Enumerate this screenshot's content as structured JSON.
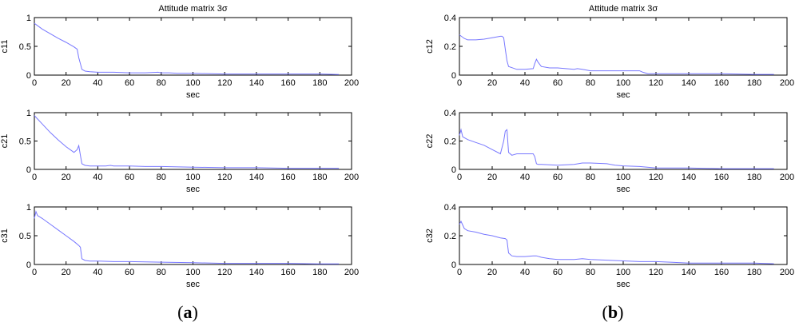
{
  "figure": {
    "panel_labels": [
      {
        "open": "(",
        "letter": "a",
        "close": ")"
      },
      {
        "open": "(",
        "letter": "b",
        "close": ")"
      }
    ]
  },
  "chart_data": [
    {
      "type": "line",
      "title": "Attitude matrix 3σ",
      "xlabel": "sec",
      "ylabel": "c11",
      "xlim": [
        0,
        200
      ],
      "ylim": [
        0,
        1
      ],
      "xticks": [
        0,
        20,
        40,
        60,
        80,
        100,
        120,
        140,
        160,
        180,
        200
      ],
      "yticks": [
        0,
        0.5,
        1
      ],
      "ytick_labels": [
        "0",
        "0.5",
        "1"
      ],
      "grid": false,
      "line_color": "#7777ff",
      "series": [
        {
          "x": [
            0,
            5,
            10,
            15,
            20,
            25,
            27,
            28,
            29,
            30,
            32,
            35,
            40,
            50,
            60,
            70,
            78,
            80,
            85,
            90,
            100,
            120,
            140,
            160,
            180,
            192
          ],
          "y": [
            0.9,
            0.8,
            0.72,
            0.64,
            0.57,
            0.49,
            0.45,
            0.3,
            0.2,
            0.1,
            0.07,
            0.06,
            0.05,
            0.05,
            0.04,
            0.04,
            0.05,
            0.04,
            0.04,
            0.03,
            0.03,
            0.02,
            0.02,
            0.02,
            0.02,
            0.01
          ]
        }
      ]
    },
    {
      "type": "line",
      "title": "Attitude matrix 3σ",
      "xlabel": "sec",
      "ylabel": "c12",
      "xlim": [
        0,
        200
      ],
      "ylim": [
        0,
        0.4
      ],
      "xticks": [
        0,
        20,
        40,
        60,
        80,
        100,
        120,
        140,
        160,
        180,
        200
      ],
      "yticks": [
        0,
        0.2,
        0.4
      ],
      "ytick_labels": [
        "0",
        "0.2",
        "0.4"
      ],
      "grid": false,
      "line_color": "#7777ff",
      "series": [
        {
          "x": [
            0,
            3,
            5,
            10,
            15,
            20,
            25,
            26,
            27,
            28,
            29,
            30,
            35,
            40,
            45,
            46,
            47,
            48,
            50,
            55,
            60,
            70,
            72,
            75,
            80,
            90,
            100,
            110,
            112,
            115,
            120,
            140,
            160,
            180,
            192
          ],
          "y": [
            0.28,
            0.255,
            0.245,
            0.245,
            0.25,
            0.26,
            0.27,
            0.27,
            0.26,
            0.18,
            0.1,
            0.06,
            0.04,
            0.04,
            0.045,
            0.08,
            0.11,
            0.09,
            0.06,
            0.05,
            0.05,
            0.04,
            0.045,
            0.04,
            0.03,
            0.03,
            0.03,
            0.03,
            0.02,
            0.01,
            0.01,
            0.01,
            0.01,
            0.005,
            0.005
          ]
        }
      ]
    },
    {
      "type": "line",
      "xlabel": "sec",
      "ylabel": "c21",
      "xlim": [
        0,
        200
      ],
      "ylim": [
        0,
        1
      ],
      "xticks": [
        0,
        20,
        40,
        60,
        80,
        100,
        120,
        140,
        160,
        180,
        200
      ],
      "yticks": [
        0,
        0.5,
        1
      ],
      "ytick_labels": [
        "0",
        "0.5",
        "1"
      ],
      "grid": false,
      "line_color": "#7777ff",
      "series": [
        {
          "x": [
            0,
            5,
            10,
            15,
            20,
            25,
            27,
            28,
            29,
            30,
            32,
            35,
            40,
            45,
            48,
            50,
            60,
            70,
            80,
            100,
            120,
            140,
            160,
            180,
            192
          ],
          "y": [
            0.95,
            0.8,
            0.65,
            0.52,
            0.4,
            0.3,
            0.35,
            0.42,
            0.25,
            0.1,
            0.07,
            0.06,
            0.06,
            0.06,
            0.07,
            0.06,
            0.06,
            0.05,
            0.05,
            0.04,
            0.03,
            0.03,
            0.02,
            0.02,
            0.02
          ]
        }
      ]
    },
    {
      "type": "line",
      "xlabel": "sec",
      "ylabel": "c22",
      "xlim": [
        0,
        200
      ],
      "ylim": [
        0,
        0.4
      ],
      "xticks": [
        0,
        20,
        40,
        60,
        80,
        100,
        120,
        140,
        160,
        180,
        200
      ],
      "yticks": [
        0,
        0.2,
        0.4
      ],
      "ytick_labels": [
        "0",
        "0.2",
        "0.4"
      ],
      "grid": false,
      "line_color": "#7777ff",
      "series": [
        {
          "x": [
            0,
            1,
            2,
            5,
            10,
            15,
            20,
            25,
            27,
            28,
            29,
            30,
            32,
            35,
            40,
            45,
            46,
            47,
            48,
            50,
            60,
            70,
            75,
            80,
            90,
            95,
            100,
            110,
            120,
            140,
            160,
            180,
            192
          ],
          "y": [
            0.24,
            0.28,
            0.23,
            0.21,
            0.19,
            0.17,
            0.14,
            0.11,
            0.2,
            0.27,
            0.28,
            0.12,
            0.1,
            0.11,
            0.11,
            0.11,
            0.09,
            0.04,
            0.035,
            0.035,
            0.03,
            0.035,
            0.045,
            0.045,
            0.04,
            0.03,
            0.025,
            0.02,
            0.01,
            0.01,
            0.005,
            0.005,
            0.005
          ]
        }
      ]
    },
    {
      "type": "line",
      "xlabel": "sec",
      "ylabel": "c31",
      "xlim": [
        0,
        200
      ],
      "ylim": [
        0,
        1
      ],
      "xticks": [
        0,
        20,
        40,
        60,
        80,
        100,
        120,
        140,
        160,
        180,
        200
      ],
      "yticks": [
        0,
        0.5,
        1
      ],
      "ytick_labels": [
        "0",
        "0.5",
        "1"
      ],
      "grid": false,
      "line_color": "#7777ff",
      "series": [
        {
          "x": [
            0,
            1,
            2,
            5,
            10,
            15,
            20,
            25,
            28,
            29,
            30,
            32,
            35,
            40,
            50,
            60,
            80,
            100,
            120,
            140,
            160,
            180,
            192
          ],
          "y": [
            0.8,
            0.92,
            0.85,
            0.8,
            0.7,
            0.6,
            0.5,
            0.4,
            0.33,
            0.3,
            0.1,
            0.07,
            0.06,
            0.06,
            0.05,
            0.05,
            0.04,
            0.03,
            0.02,
            0.02,
            0.02,
            0.01,
            0.01
          ]
        }
      ]
    },
    {
      "type": "line",
      "xlabel": "sec",
      "ylabel": "c32",
      "xlim": [
        0,
        200
      ],
      "ylim": [
        0,
        0.4
      ],
      "xticks": [
        0,
        20,
        40,
        60,
        80,
        100,
        120,
        140,
        160,
        180,
        200
      ],
      "yticks": [
        0,
        0.2,
        0.4
      ],
      "ytick_labels": [
        "0",
        "0.2",
        "0.4"
      ],
      "grid": false,
      "line_color": "#7777ff",
      "series": [
        {
          "x": [
            0,
            1,
            3,
            5,
            10,
            15,
            20,
            25,
            28,
            29,
            30,
            32,
            35,
            40,
            45,
            47,
            50,
            55,
            60,
            70,
            75,
            80,
            90,
            100,
            110,
            120,
            130,
            140,
            150,
            160,
            180,
            192
          ],
          "y": [
            0.28,
            0.3,
            0.25,
            0.235,
            0.225,
            0.21,
            0.2,
            0.185,
            0.18,
            0.17,
            0.08,
            0.06,
            0.055,
            0.055,
            0.06,
            0.06,
            0.05,
            0.04,
            0.035,
            0.035,
            0.04,
            0.035,
            0.03,
            0.025,
            0.02,
            0.02,
            0.015,
            0.01,
            0.01,
            0.01,
            0.01,
            0.005
          ]
        }
      ]
    }
  ]
}
